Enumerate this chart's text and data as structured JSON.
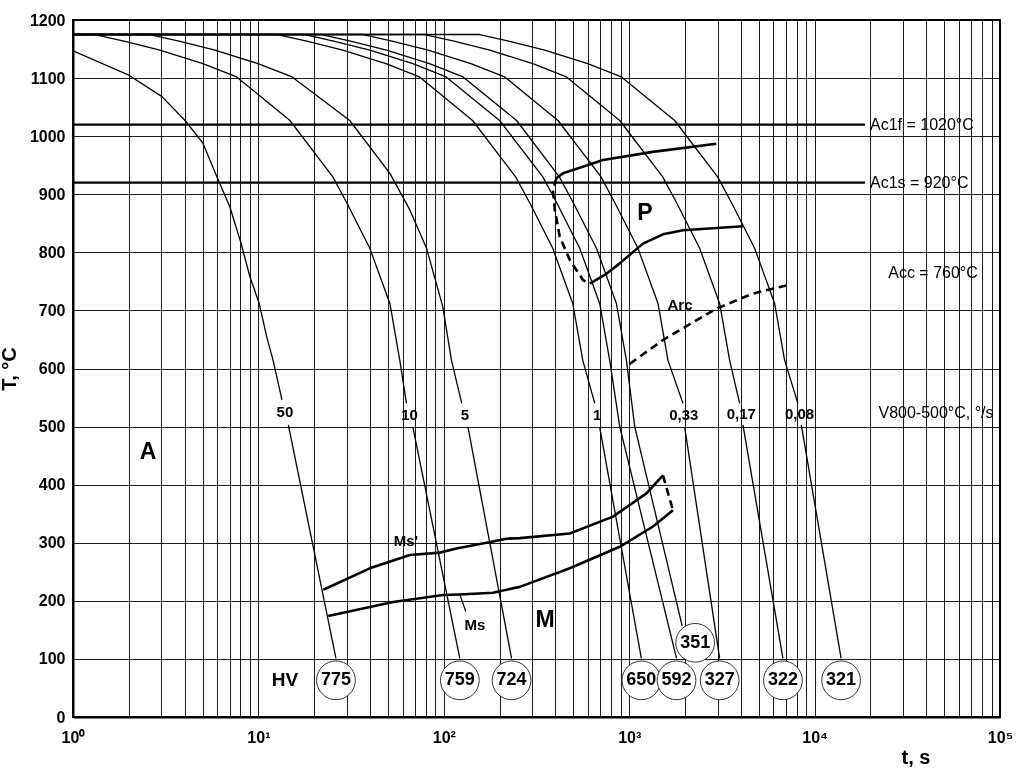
{
  "chart_data": {
    "type": "line",
    "xlabel": "t, s",
    "ylabel": "T, °C",
    "log": "x",
    "grid": true,
    "xlim": [
      1,
      100000
    ],
    "ylim": [
      0,
      1200
    ],
    "xticks": [
      {
        "value": 1,
        "label": "10⁰"
      },
      {
        "value": 2,
        "label": null
      },
      {
        "value": 3,
        "label": null
      },
      {
        "value": 4,
        "label": null
      },
      {
        "value": 5,
        "label": null
      },
      {
        "value": 6,
        "label": null
      },
      {
        "value": 7,
        "label": null
      },
      {
        "value": 8,
        "label": null
      },
      {
        "value": 9,
        "label": null
      },
      {
        "value": 10,
        "label": "10¹"
      },
      {
        "value": 20,
        "label": null
      },
      {
        "value": 30,
        "label": null
      },
      {
        "value": 40,
        "label": null
      },
      {
        "value": 50,
        "label": null
      },
      {
        "value": 60,
        "label": null
      },
      {
        "value": 70,
        "label": null
      },
      {
        "value": 80,
        "label": null
      },
      {
        "value": 90,
        "label": null
      },
      {
        "value": 100,
        "label": "10²"
      },
      {
        "value": 200,
        "label": null
      },
      {
        "value": 300,
        "label": null
      },
      {
        "value": 400,
        "label": null
      },
      {
        "value": 500,
        "label": null
      },
      {
        "value": 600,
        "label": null
      },
      {
        "value": 700,
        "label": null
      },
      {
        "value": 800,
        "label": null
      },
      {
        "value": 900,
        "label": null
      },
      {
        "value": 1000,
        "label": "10³"
      },
      {
        "value": 2000,
        "label": null
      },
      {
        "value": 3000,
        "label": null
      },
      {
        "value": 4000,
        "label": null
      },
      {
        "value": 5000,
        "label": null
      },
      {
        "value": 6000,
        "label": null
      },
      {
        "value": 7000,
        "label": null
      },
      {
        "value": 8000,
        "label": null
      },
      {
        "value": 9000,
        "label": null
      },
      {
        "value": 10000,
        "label": "10⁴"
      },
      {
        "value": 20000,
        "label": null
      },
      {
        "value": 30000,
        "label": null
      },
      {
        "value": 40000,
        "label": null
      },
      {
        "value": 50000,
        "label": null
      },
      {
        "value": 60000,
        "label": null
      },
      {
        "value": 70000,
        "label": null
      },
      {
        "value": 80000,
        "label": null
      },
      {
        "value": 90000,
        "label": null
      },
      {
        "value": 100000,
        "label": "10⁵"
      }
    ],
    "yticks": [
      0,
      100,
      200,
      300,
      400,
      500,
      600,
      700,
      800,
      900,
      1000,
      1100,
      1200
    ],
    "series": [
      {
        "name": "50",
        "color": "#000000",
        "x": [
          1,
          2.0,
          3.02,
          4.02,
          5.02,
          5.97,
          7.02,
          8.05,
          9.0,
          10.1,
          11.1,
          12.0,
          13.4,
          13.9,
          14.5,
          26.2
        ],
        "values": [
          1147,
          1105,
          1068,
          1027,
          988,
          930,
          878,
          816,
          758,
          712,
          654,
          614,
          546,
          null,
          503,
          101
        ]
      },
      {
        "name": "10",
        "color": "#000000",
        "x": [
          1,
          1.31,
          1.91,
          2.94,
          5.02,
          7.63,
          14.8,
          25.2,
          30.0,
          39.9,
          51.2,
          57.9,
          62.9,
          65.4,
          68.1,
          122
        ],
        "values": [
          1175,
          1175,
          1163,
          1148,
          1125,
          1102,
          1027,
          930,
          885,
          807,
          712,
          614,
          540,
          null,
          499,
          101
        ]
      },
      {
        "name": "5",
        "color": "#000000",
        "x": [
          1,
          2.6,
          3.78,
          5.83,
          9.94,
          15.2,
          31.1,
          51.2,
          65.6,
          80.7,
          98.8,
          110,
          125,
          130,
          135,
          232
        ],
        "values": [
          1175,
          1175,
          1163,
          1148,
          1125,
          1102,
          1027,
          936,
          873,
          807,
          706,
          614,
          540,
          null,
          499,
          101
        ]
      },
      {
        "name": "1",
        "color": "#000000",
        "x": [
          1,
          12.7,
          18.5,
          28.5,
          48.7,
          74.0,
          143,
          244,
          291,
          387,
          496,
          562,
          652,
          672,
          693,
          1163
        ],
        "values": [
          1175,
          1175,
          1163,
          1148,
          1125,
          1102,
          1027,
          930,
          885,
          807,
          712,
          614,
          540,
          null,
          499,
          101
        ]
      },
      {
        "color": "#000000",
        "x": [
          1,
          17.8,
          25.8,
          39.9,
          68.1,
          103,
          200,
          342,
          407,
          541,
          693,
          785,
          889,
          1800
        ],
        "values": [
          1175,
          1175,
          1163,
          1148,
          1125,
          1102,
          1027,
          930,
          885,
          807,
          712,
          614,
          500,
          101
        ]
      },
      {
        "color": "#000000",
        "x": [
          1,
          21.9,
          31.8,
          49.1,
          83.7,
          127,
          247,
          420,
          500,
          666,
          853,
          966,
          1071,
          1930
        ],
        "values": [
          1175,
          1175,
          1163,
          1148,
          1125,
          1102,
          1027,
          930,
          885,
          807,
          712,
          614,
          500,
          157
        ]
      },
      {
        "name": "0,33",
        "color": "#000000",
        "x": [
          1,
          36.7,
          53.3,
          82.3,
          140,
          213,
          413,
          705,
          838,
          1115,
          1430,
          1619,
          1950,
          1970,
          1992,
          3075
        ],
        "values": [
          1175,
          1175,
          1163,
          1148,
          1125,
          1102,
          1027,
          930,
          885,
          807,
          712,
          614,
          540,
          null,
          499,
          101
        ]
      },
      {
        "name": "0,17",
        "color": "#000000",
        "x": [
          1,
          79.0,
          115,
          177,
          302,
          459,
          889,
          1516,
          1804,
          2399,
          3075,
          3482,
          3942,
          4020,
          4107,
          6748
        ],
        "values": [
          1175,
          1175,
          1163,
          1148,
          1125,
          1102,
          1027,
          930,
          885,
          807,
          712,
          614,
          540,
          null,
          503,
          101
        ]
      },
      {
        "name": "0,08",
        "color": "#000000",
        "x": [
          1,
          156,
          227,
          350,
          597,
          908,
          1759,
          3000,
          3569,
          4748,
          6087,
          6892,
          8128,
          8300,
          8477,
          13900
        ],
        "values": [
          1175,
          1175,
          1163,
          1148,
          1125,
          1102,
          1027,
          930,
          885,
          807,
          712,
          614,
          540,
          null,
          503,
          101
        ]
      },
      {
        "color": "#000000",
        "x": [
          405,
          440,
          723,
          1340,
          2950
        ],
        "values": [
          928,
          936,
          959,
          973,
          987
        ]
      },
      {
        "color": "#000000",
        "x": [
          613,
          754,
          889,
          1187,
          1521,
          1950,
          4107
        ],
        "values": [
          746,
          763,
          781,
          815,
          831,
          838,
          845
        ]
      },
      {
        "color": "#000000",
        "line_style": "dashed",
        "x": [
          405,
          388,
          397,
          422,
          478,
          564,
          613
        ],
        "values": [
          928,
          907,
          873,
          827,
          787,
          752,
          746
        ]
      },
      {
        "name": "Arc",
        "color": "#000000",
        "line_style": "dashed",
        "x": [
          1006,
          1521,
          2303,
          2952,
          4650,
          7039
        ],
        "values": [
          608,
          649,
          683,
          703,
          729,
          743
        ]
      },
      {
        "name": "Ms'",
        "color": "#000000",
        "x": [
          22.4,
          39.9,
          65.6,
          95.1,
          117,
          184,
          218,
          257,
          478,
          818,
          1238,
          1521
        ],
        "values": [
          219,
          256,
          279,
          283,
          290,
          302,
          307,
          308,
          316,
          345,
          385,
          416
        ]
      },
      {
        "name": "Ms",
        "color": "#000000",
        "x": [
          23.8,
          53.3,
          99.1,
          122,
          184,
          257,
          478,
          889,
          1344,
          1722
        ],
        "values": [
          174,
          198,
          210,
          211,
          214,
          224,
          256,
          293,
          328,
          356
        ]
      },
      {
        "color": "#000000",
        "line_style": "dashed",
        "x": [
          1521,
          1722
        ],
        "values": [
          416,
          356
        ]
      }
    ],
    "ref_lines": [
      {
        "axis": "y",
        "value": 1020,
        "label": "Ac1f = 1020°C"
      },
      {
        "axis": "y",
        "value": 920,
        "label": "Ac1s = 920°C"
      }
    ],
    "annotations": [
      "A",
      "P",
      "M",
      "HV",
      "Acc = 760°C",
      "V800-500°C, °/s",
      {
        "text": "775",
        "x": 26.2,
        "y": 101
      },
      {
        "text": "759",
        "x": 122,
        "y": 101
      },
      {
        "text": "724",
        "x": 232,
        "y": 101
      },
      {
        "text": "650",
        "x": 1163,
        "y": 101
      },
      {
        "text": "592",
        "x": 1800,
        "y": 101
      },
      {
        "text": "351",
        "x": 1930,
        "y": 157
      },
      {
        "text": "327",
        "x": 3075,
        "y": 101
      },
      {
        "text": "322",
        "x": 6748,
        "y": 101
      },
      {
        "text": "321",
        "x": 13900,
        "y": 101
      }
    ]
  }
}
